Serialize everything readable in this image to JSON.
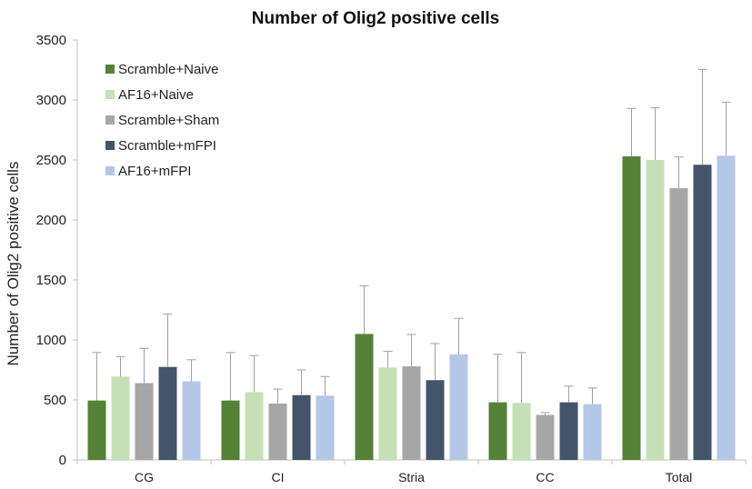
{
  "chart_data": {
    "type": "bar",
    "title": "Number of Olig2 positive cells",
    "xlabel": "",
    "ylabel": "Number of Olig2 positive cells",
    "ylim": [
      0,
      3500
    ],
    "yticks": [
      0,
      500,
      1000,
      1500,
      2000,
      2500,
      3000,
      3500
    ],
    "grid": false,
    "legend_position": "top-left",
    "categories": [
      "CG",
      "CI",
      "Stria",
      "CC",
      "Total"
    ],
    "series": [
      {
        "name": "Scramble+Naive",
        "color": "#538135",
        "values": [
          495,
          495,
          1050,
          480,
          2530
        ],
        "errors": [
          400,
          400,
          400,
          400,
          400
        ]
      },
      {
        "name": "AF16+Naive",
        "color": "#c5e0b4",
        "values": [
          695,
          565,
          770,
          475,
          2500
        ],
        "errors": [
          165,
          305,
          135,
          420,
          435
        ]
      },
      {
        "name": "Scramble+Sham",
        "color": "#a6a6a6",
        "values": [
          640,
          470,
          780,
          375,
          2265
        ],
        "errors": [
          290,
          120,
          265,
          20,
          260
        ]
      },
      {
        "name": "Scramble+mFPI",
        "color": "#44546a",
        "values": [
          775,
          540,
          665,
          480,
          2460
        ],
        "errors": [
          440,
          210,
          305,
          135,
          795
        ]
      },
      {
        "name": "AF16+mFPI",
        "color": "#b4c7e7",
        "values": [
          655,
          535,
          880,
          465,
          2535
        ],
        "errors": [
          180,
          160,
          300,
          135,
          445
        ]
      }
    ]
  }
}
